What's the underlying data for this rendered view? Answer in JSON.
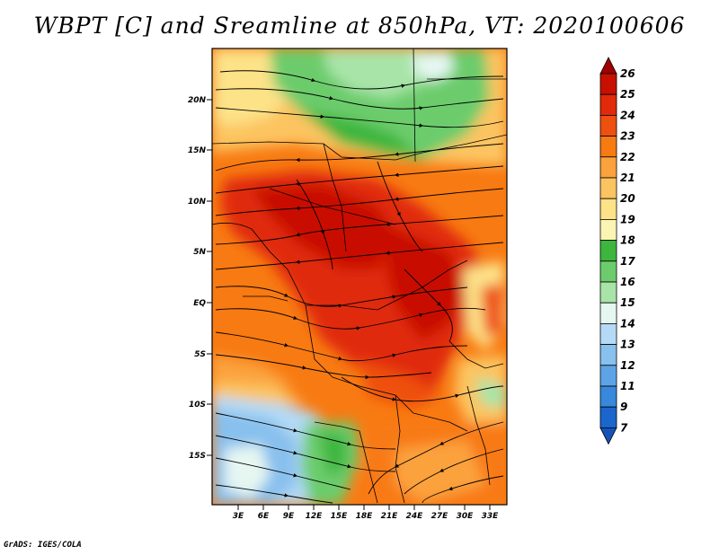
{
  "title": "WBPT [C] and Sreamline at 850hPa, VT: 2020100606",
  "footer": "GrADS: IGES/COLA",
  "map": {
    "variable": "Wet bulb potential temperature with streamlines",
    "units": "C",
    "level_hpa": 850,
    "valid_time": "2020100606",
    "lat_ticks": [
      "20N",
      "15N",
      "10N",
      "5N",
      "EQ",
      "5S",
      "10S",
      "15S"
    ],
    "lon_ticks": [
      "3E",
      "6E",
      "9E",
      "12E",
      "15E",
      "18E",
      "21E",
      "24E",
      "27E",
      "30E",
      "33E"
    ]
  },
  "colorbar": {
    "labels": [
      "26",
      "25",
      "24",
      "23",
      "22",
      "21",
      "20",
      "19",
      "18",
      "17",
      "16",
      "15",
      "14",
      "13",
      "12",
      "11",
      "9",
      "7"
    ],
    "colors": [
      "#a00000",
      "#c81000",
      "#e02a0a",
      "#ee5010",
      "#f87a12",
      "#fba23c",
      "#fcc460",
      "#fde288",
      "#fbf5b4",
      "#3cb63c",
      "#6ccc6c",
      "#a8e4a8",
      "#e6f7f2",
      "#b4daf6",
      "#88c0ee",
      "#5ca4e6",
      "#3888dc",
      "#1a66cc",
      "#1452b8"
    ]
  }
}
